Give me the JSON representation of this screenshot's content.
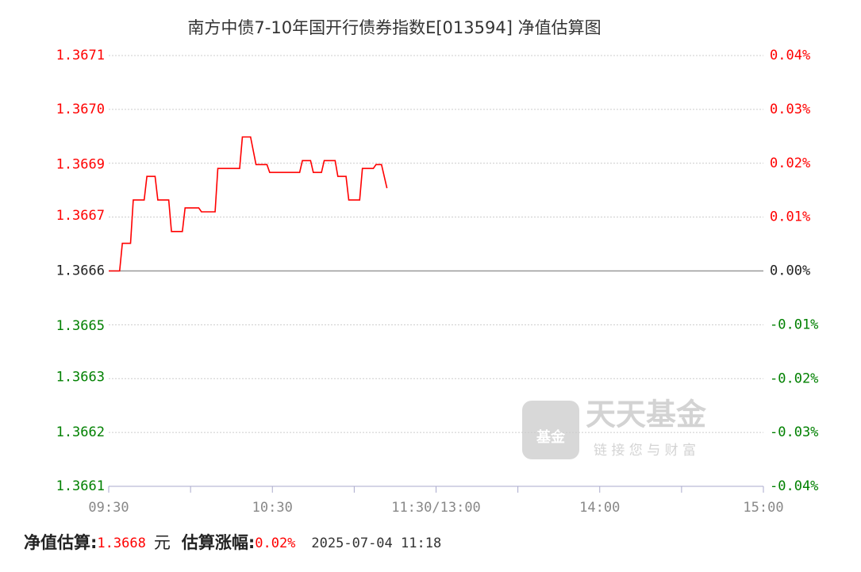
{
  "chart_data": {
    "type": "line",
    "title": "南方中债7-10年国开行债券指数E[013594] 净值估算图",
    "x": [
      "09:30",
      "09:34",
      "09:35",
      "09:38",
      "09:39",
      "09:43",
      "09:44",
      "09:47",
      "09:48",
      "09:52",
      "09:53",
      "09:57",
      "09:58",
      "10:03",
      "10:04",
      "10:09",
      "10:10",
      "10:18",
      "10:19",
      "10:22",
      "10:24",
      "10:28",
      "10:29",
      "10:40",
      "10:41",
      "10:44",
      "10:45",
      "10:48",
      "10:49",
      "10:53",
      "10:54",
      "10:57",
      "10:58",
      "11:02",
      "11:03",
      "11:07",
      "11:08",
      "11:10",
      "11:12"
    ],
    "series": [
      {
        "name": "净值估算",
        "color": "#ff0000",
        "values": [
          1.3666,
          1.3666,
          1.36667,
          1.36667,
          1.36678,
          1.36678,
          1.36684,
          1.36684,
          1.36678,
          1.36678,
          1.3667,
          1.3667,
          1.36676,
          1.36676,
          1.36675,
          1.36675,
          1.36686,
          1.36686,
          1.36694,
          1.36694,
          1.36687,
          1.36687,
          1.36685,
          1.36685,
          1.36688,
          1.36688,
          1.36685,
          1.36685,
          1.36688,
          1.36688,
          1.36684,
          1.36684,
          1.36678,
          1.36678,
          1.36686,
          1.36686,
          1.36687,
          1.36687,
          1.36681
        ]
      }
    ],
    "ylim": [
      1.3660534,
      1.3671466
    ],
    "yticks": [
      {
        "value": 1.3671466,
        "label": "1.3671"
      },
      {
        "value": 1.36701,
        "label": "1.3670"
      },
      {
        "value": 1.36687,
        "label": "1.3669"
      },
      {
        "value": 1.36674,
        "label": "1.3667"
      },
      {
        "value": 1.3666,
        "label": "1.3666"
      },
      {
        "value": 1.36646,
        "label": "1.3665"
      },
      {
        "value": 1.36633,
        "label": "1.3663"
      },
      {
        "value": 1.36619,
        "label": "1.3662"
      },
      {
        "value": 1.3660534,
        "label": "1.3661"
      }
    ],
    "y2lim": [
      -0.04,
      0.04
    ],
    "y2ticks": [
      {
        "value": 0.04,
        "label": "0.04%"
      },
      {
        "value": 0.03,
        "label": "0.03%"
      },
      {
        "value": 0.02,
        "label": "0.02%"
      },
      {
        "value": 0.01,
        "label": "0.01%"
      },
      {
        "value": 0,
        "label": "0.00%"
      },
      {
        "value": -0.01,
        "label": "-0.01%"
      },
      {
        "value": -0.02,
        "label": "-0.02%"
      },
      {
        "value": -0.03,
        "label": "-0.03%"
      },
      {
        "value": -0.04,
        "label": "-0.04%"
      }
    ],
    "xticks": [
      "09:30",
      "10:30",
      "11:30/13:00",
      "14:00",
      "15:00"
    ],
    "grid": true,
    "up_color": "#ff0000",
    "down_color": "#008000",
    "watermark": {
      "logo": "基金",
      "name": "天天基金",
      "slogan": "链 接 您 与 财 富"
    },
    "footer": {
      "nav_label": "净值估算:",
      "nav": "1.3668",
      "unit": "元",
      "change_label": "估算涨幅:",
      "change": "0.02%",
      "time": "2025-07-04 11:18"
    }
  }
}
